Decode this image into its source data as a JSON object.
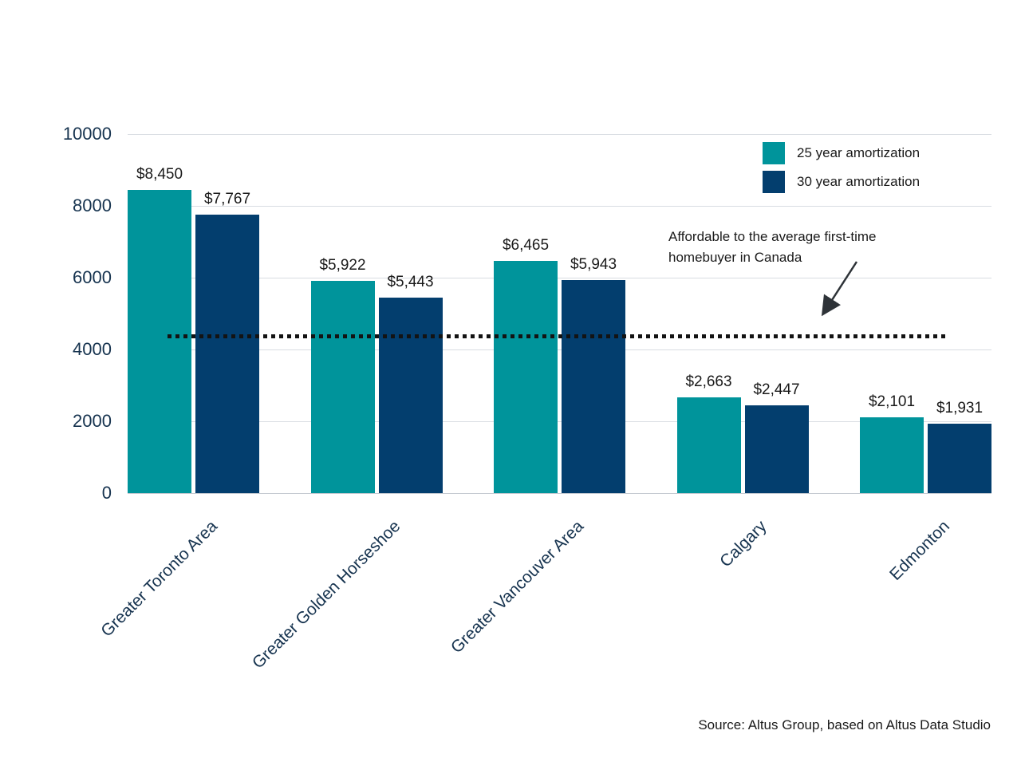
{
  "chart_data": {
    "type": "bar",
    "title": "",
    "categories": [
      "Greater Toronto Area",
      "Greater Golden Horseshoe",
      "Greater Vancouver Area",
      "Calgary",
      "Edmonton"
    ],
    "series": [
      {
        "name": "25 year amortization",
        "color": "#00949B",
        "values": [
          8450,
          5922,
          6465,
          2663,
          2101
        ],
        "display_values": [
          "$8,450",
          "$5,922",
          "$6,465",
          "$2,663",
          "$2,101"
        ]
      },
      {
        "name": "30 year amortization",
        "color": "#033E6E",
        "values": [
          7767,
          5443,
          5943,
          2447,
          1931
        ],
        "display_values": [
          "$7,767",
          "$5,443",
          "$5,943",
          "$2,447",
          "$1,931"
        ]
      }
    ],
    "xlabel": "",
    "ylabel": "",
    "ylim": [
      0,
      10000
    ],
    "yticks": [
      0,
      2000,
      4000,
      6000,
      8000,
      10000
    ],
    "grid": true,
    "legend_position": "top-right",
    "reference_line": {
      "value": 4370,
      "style": "dotted",
      "annotation_lines": [
        "Affordable to the average first-time",
        "homebuyer in Canada"
      ]
    },
    "source": "Source: Altus Group, based on Altus Data Studio"
  },
  "colors": {
    "teal": "#00949B",
    "navy": "#033E6E",
    "grid": "#D9DDE2",
    "axis_text": "#16334F",
    "label_text": "#1A1A1A",
    "dotted_line": "#131313",
    "arrow": "#2E3338"
  }
}
